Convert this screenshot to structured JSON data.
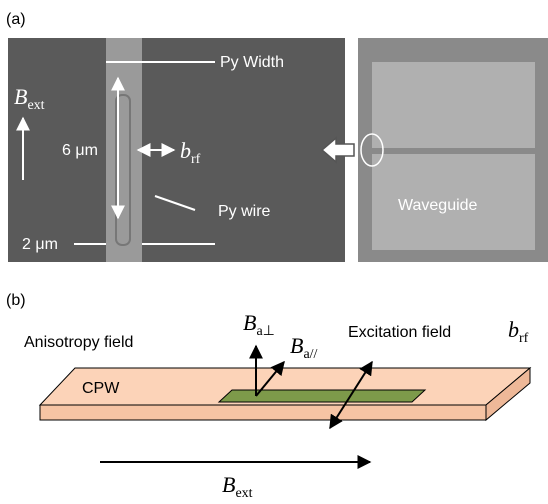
{
  "panel_a": {
    "label": "(a)",
    "py_width": "Py Width",
    "b_ext": {
      "main": "B",
      "sub": "ext"
    },
    "length": "6 μm",
    "b_rf": {
      "main": "b",
      "sub": "rf"
    },
    "py_wire": "Py wire",
    "spacing": "2 μm",
    "waveguide": "Waveguide"
  },
  "panel_b": {
    "label": "(b)",
    "anisotropy": "Anisotropy field",
    "b_perp": {
      "main": "B",
      "sub": "a⊥"
    },
    "b_par": {
      "main": "B",
      "sub": "a//"
    },
    "excitation": "Excitation field",
    "b_rf": {
      "main": "b",
      "sub": "rf"
    },
    "cpw": "CPW",
    "b_ext": {
      "main": "B",
      "sub": "ext"
    }
  }
}
